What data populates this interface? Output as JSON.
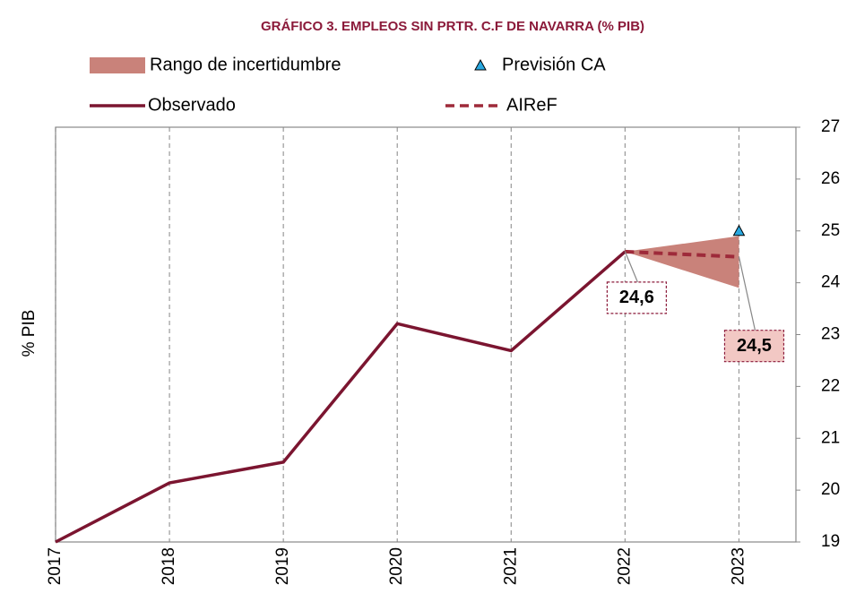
{
  "chart_data": {
    "type": "line",
    "title": "GRÁFICO 3. EMPLEOS SIN PRTR. C.F DE NAVARRA (% PIB)",
    "y_label": "% PIB",
    "x": [
      2017,
      2018,
      2019,
      2020,
      2021,
      2022,
      2023
    ],
    "xlim": [
      2017,
      2023.5
    ],
    "xticks": [
      2017,
      2018,
      2019,
      2020,
      2021,
      2022,
      2023
    ],
    "ylim": [
      19,
      27
    ],
    "yticks": [
      19,
      20,
      21,
      22,
      23,
      24,
      25,
      26,
      27
    ],
    "grid": true,
    "series": [
      {
        "name": "Rango de incertidumbre",
        "kind": "band",
        "color": "#c9827a",
        "lower": [
          null,
          null,
          null,
          null,
          null,
          24.6,
          23.9
        ],
        "upper": [
          null,
          null,
          null,
          null,
          null,
          24.6,
          24.9
        ]
      },
      {
        "name": "Previsión CA",
        "kind": "marker",
        "color": "#29a8e0",
        "values": [
          null,
          null,
          null,
          null,
          null,
          null,
          25.0
        ]
      },
      {
        "name": "Observado",
        "kind": "solid",
        "color": "#7b1530",
        "values": [
          19.0,
          20.14,
          20.54,
          23.21,
          22.69,
          24.6,
          null
        ]
      },
      {
        "name": "AIReF",
        "kind": "dashed",
        "color": "#9e2a3a",
        "values": [
          null,
          null,
          null,
          null,
          null,
          24.6,
          24.5
        ],
        "value_labels": [
          null,
          null,
          null,
          null,
          null,
          "24,6",
          "24,5"
        ]
      }
    ]
  }
}
